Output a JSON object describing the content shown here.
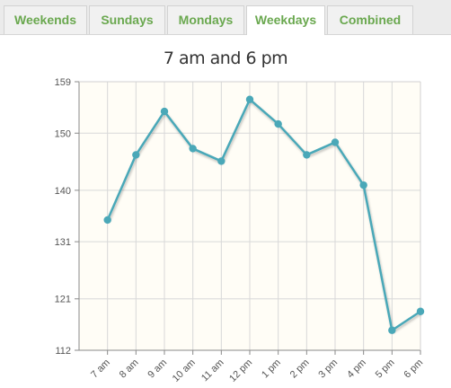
{
  "tabs": [
    {
      "label": "Weekends",
      "active": false
    },
    {
      "label": "Sundays",
      "active": false
    },
    {
      "label": "Mondays",
      "active": false
    },
    {
      "label": "Weekdays",
      "active": true
    },
    {
      "label": "Combined",
      "active": false
    }
  ],
  "colors": {
    "tab_text": "#6aa84f",
    "line": "#4aa8b8",
    "plot_bg": "#fffdf6",
    "grid": "#d8d8d8"
  },
  "chart_data": {
    "type": "line",
    "title": "7 am and 6 pm",
    "xlabel": "",
    "ylabel": "",
    "categories": [
      "7 am",
      "8 am",
      "9 am",
      "10 am",
      "11 am",
      "12 pm",
      "1 pm",
      "2 pm",
      "3 pm",
      "4 pm",
      "5 pm",
      "6 pm"
    ],
    "series": [
      {
        "values": [
          134.8,
          146.2,
          153.8,
          147.3,
          145.1,
          155.9,
          151.6,
          146.2,
          148.4,
          140.9,
          115.5,
          118.8
        ]
      }
    ],
    "y_ticks": [
      112,
      121,
      131,
      140,
      150,
      159
    ],
    "ylim": [
      112,
      159
    ],
    "grid": true,
    "legend": "none"
  }
}
